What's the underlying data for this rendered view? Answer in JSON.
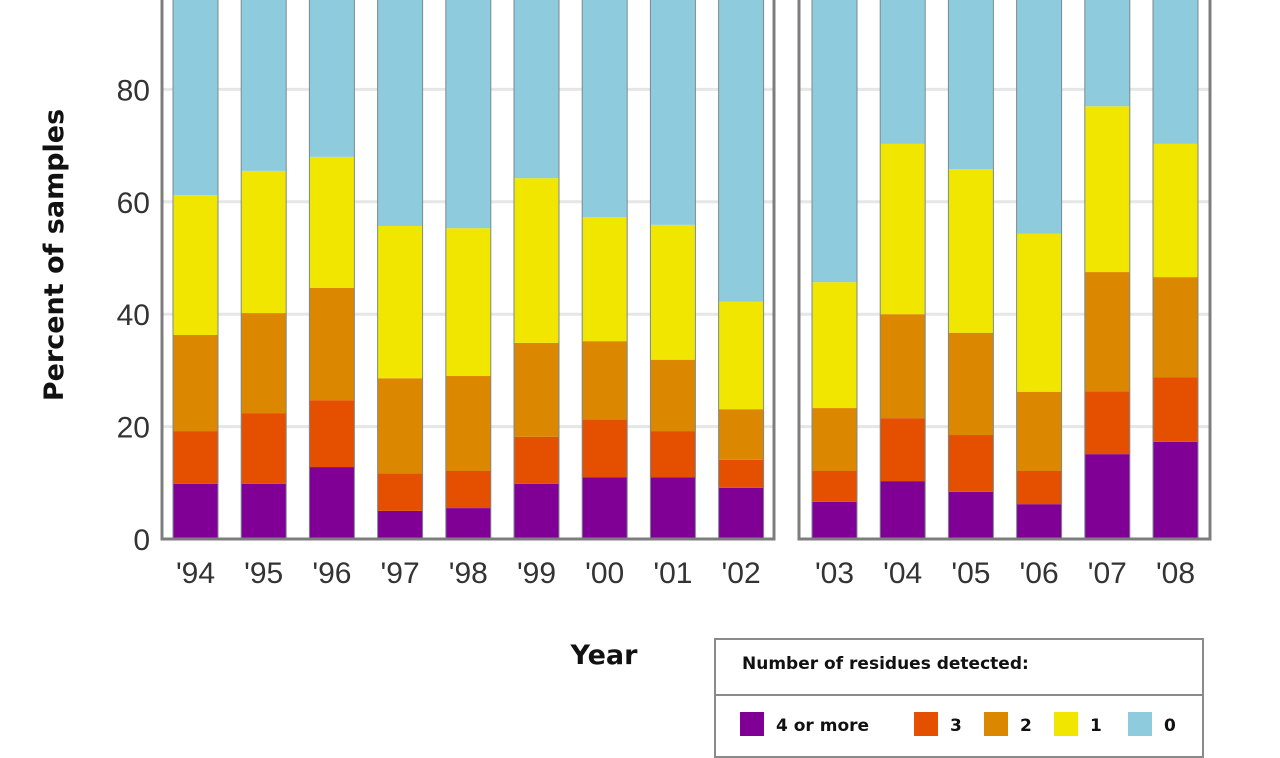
{
  "chart_data": {
    "type": "bar",
    "stacked": true,
    "title": "",
    "xlabel": "Year",
    "ylabel": "Percent of samples",
    "ylim": [
      0,
      100
    ],
    "yticks": [
      0,
      20,
      40,
      60,
      80
    ],
    "grid": "horizontal",
    "panels": [
      {
        "name": "left",
        "categories": [
          "'94",
          "'95",
          "'96",
          "'97",
          "'98",
          "'99",
          "'00",
          "'01",
          "'02"
        ]
      },
      {
        "name": "right",
        "categories": [
          "'03",
          "'04",
          "'05",
          "'06",
          "'07",
          "'08"
        ]
      }
    ],
    "categories": [
      "'94",
      "'95",
      "'96",
      "'97",
      "'98",
      "'99",
      "'00",
      "'01",
      "'02",
      "'03",
      "'04",
      "'05",
      "'06",
      "'07",
      "'08"
    ],
    "series": [
      {
        "name": "4 or more",
        "color": "#800096",
        "values": [
          9.8,
          9.8,
          12.8,
          5.0,
          5.5,
          9.8,
          11.0,
          11.0,
          9.1,
          6.6,
          10.3,
          8.4,
          6.2,
          15.1,
          17.3
        ]
      },
      {
        "name": "3",
        "color": "#e45000",
        "values": [
          9.4,
          12.6,
          11.9,
          6.7,
          6.6,
          8.4,
          10.3,
          8.2,
          5.0,
          5.5,
          11.2,
          10.1,
          5.9,
          11.2,
          11.5
        ]
      },
      {
        "name": "2",
        "color": "#db8800",
        "values": [
          17.1,
          17.8,
          20.0,
          16.9,
          16.9,
          16.7,
          13.9,
          12.7,
          9.0,
          11.2,
          18.5,
          18.2,
          14.1,
          21.2,
          17.8
        ]
      },
      {
        "name": "1",
        "color": "#f0e600",
        "values": [
          24.9,
          25.3,
          23.3,
          27.1,
          26.3,
          29.3,
          22.1,
          24.0,
          19.1,
          22.4,
          30.3,
          29.1,
          28.1,
          29.5,
          23.7
        ]
      },
      {
        "name": "0",
        "color": "#8ecbdc",
        "values": [
          38.8,
          34.5,
          32.0,
          44.3,
          44.7,
          35.8,
          42.7,
          44.1,
          57.8,
          54.3,
          29.7,
          34.2,
          45.7,
          23.0,
          29.7
        ]
      }
    ],
    "legend": {
      "title": "Number of residues detected:",
      "position": "bottom-right",
      "entries": [
        "4 or more",
        "3",
        "2",
        "1",
        "0"
      ]
    }
  }
}
